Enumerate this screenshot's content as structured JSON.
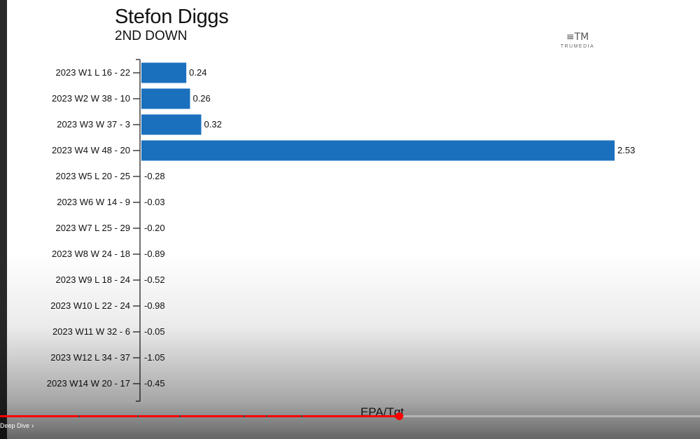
{
  "player": {
    "title": "Stefon Diggs",
    "subtitle": "2ND DOWN",
    "brand_mark": "≡TM",
    "brand_name": "TRUMEDIA",
    "icons": {
      "brand": "trumedia-logo-icon",
      "chapter": "chevron-right-icon"
    }
  },
  "chart_data": {
    "type": "bar",
    "orientation": "horizontal",
    "title": "Stefon Diggs",
    "subtitle": "2ND DOWN",
    "xlabel": "EPA/Tgt",
    "ylabel": "",
    "categories": [
      "2023 W1 L 16 - 22",
      "2023 W2 W 38 - 10",
      "2023 W3 W 37 - 3",
      "2023 W4 W 48 - 20",
      "2023 W5 L 20 - 25",
      "2023 W6 W 14 - 9",
      "2023 W7 L 25 - 29",
      "2023 W8 W 24 - 18",
      "2023 W9 L 18 - 24",
      "2023 W10 L 22 - 24",
      "2023 W11 W 32 - 6",
      "2023 W12 L 34 - 37",
      "2023 W14 W 20 - 17"
    ],
    "values": [
      0.24,
      0.26,
      0.32,
      2.53,
      -0.28,
      -0.03,
      -0.2,
      -0.89,
      -0.52,
      -0.98,
      -0.05,
      -1.05,
      -0.45
    ],
    "value_labels": [
      "0.24",
      "0.26",
      "0.32",
      "2.53",
      "-0.28",
      "-0.03",
      "-0.20",
      "-0.89",
      "-0.52",
      "-0.98",
      "-0.05",
      "-1.05",
      "-0.45"
    ],
    "xlim": [
      0,
      2.53
    ],
    "bar_color": "#1a70bd",
    "grid": false,
    "negative_bars_drawn": false
  },
  "player_ui": {
    "chapter_label": "Deep Dive",
    "progress_fraction": 0.57,
    "accent_color": "#ff0000",
    "chapter_marks": [
      0.112,
      0.196,
      0.256,
      0.348,
      0.38,
      0.43
    ]
  }
}
